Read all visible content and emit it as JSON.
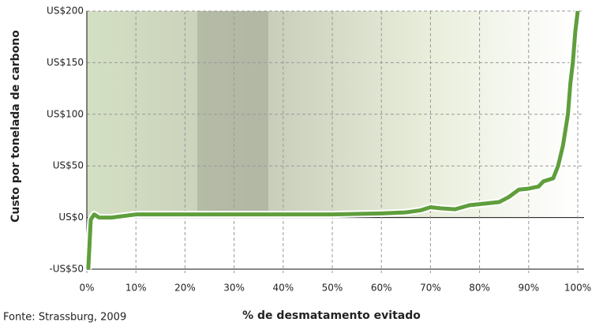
{
  "chart_data": {
    "type": "line",
    "source": "Fonte: Strassburg, 2009",
    "x_label": "% de desmatamento evitado",
    "y_label": "Custo por tonelada de carbono",
    "x": [
      0.3,
      0.8,
      1.5,
      2.5,
      5,
      10,
      20,
      30,
      40,
      50,
      60,
      65,
      68,
      70,
      72,
      75,
      78,
      80,
      84,
      86,
      88,
      90,
      92,
      93,
      95,
      96,
      97,
      98,
      98.5,
      99,
      99.5,
      100
    ],
    "values": [
      -50,
      -2,
      3,
      0,
      0,
      3,
      3,
      3,
      3,
      3,
      4,
      5,
      7,
      10,
      9,
      8,
      12,
      13,
      15,
      20,
      27,
      28,
      30,
      35,
      38,
      50,
      70,
      100,
      130,
      150,
      180,
      200
    ],
    "color": "#5f9e3c",
    "xlim": [
      0,
      100
    ],
    "ylim": [
      -50,
      200
    ],
    "xticks": [
      {
        "value": 0,
        "label": "0%"
      },
      {
        "value": 10,
        "label": "10%"
      },
      {
        "value": 20,
        "label": "20%"
      },
      {
        "value": 30,
        "label": "30%"
      },
      {
        "value": 40,
        "label": "40%"
      },
      {
        "value": 50,
        "label": "50%"
      },
      {
        "value": 60,
        "label": "60%"
      },
      {
        "value": 70,
        "label": "70%"
      },
      {
        "value": 80,
        "label": "80%"
      },
      {
        "value": 90,
        "label": "90%"
      },
      {
        "value": 100,
        "label": "100%"
      }
    ],
    "yticks": [
      {
        "value": -50,
        "label": "-US$50"
      },
      {
        "value": 0,
        "label": "US$0"
      },
      {
        "value": 50,
        "label": "US$50"
      },
      {
        "value": 100,
        "label": "US$100"
      },
      {
        "value": 150,
        "label": "US$150"
      },
      {
        "value": 200,
        "label": "US$200"
      }
    ],
    "grid": true
  }
}
